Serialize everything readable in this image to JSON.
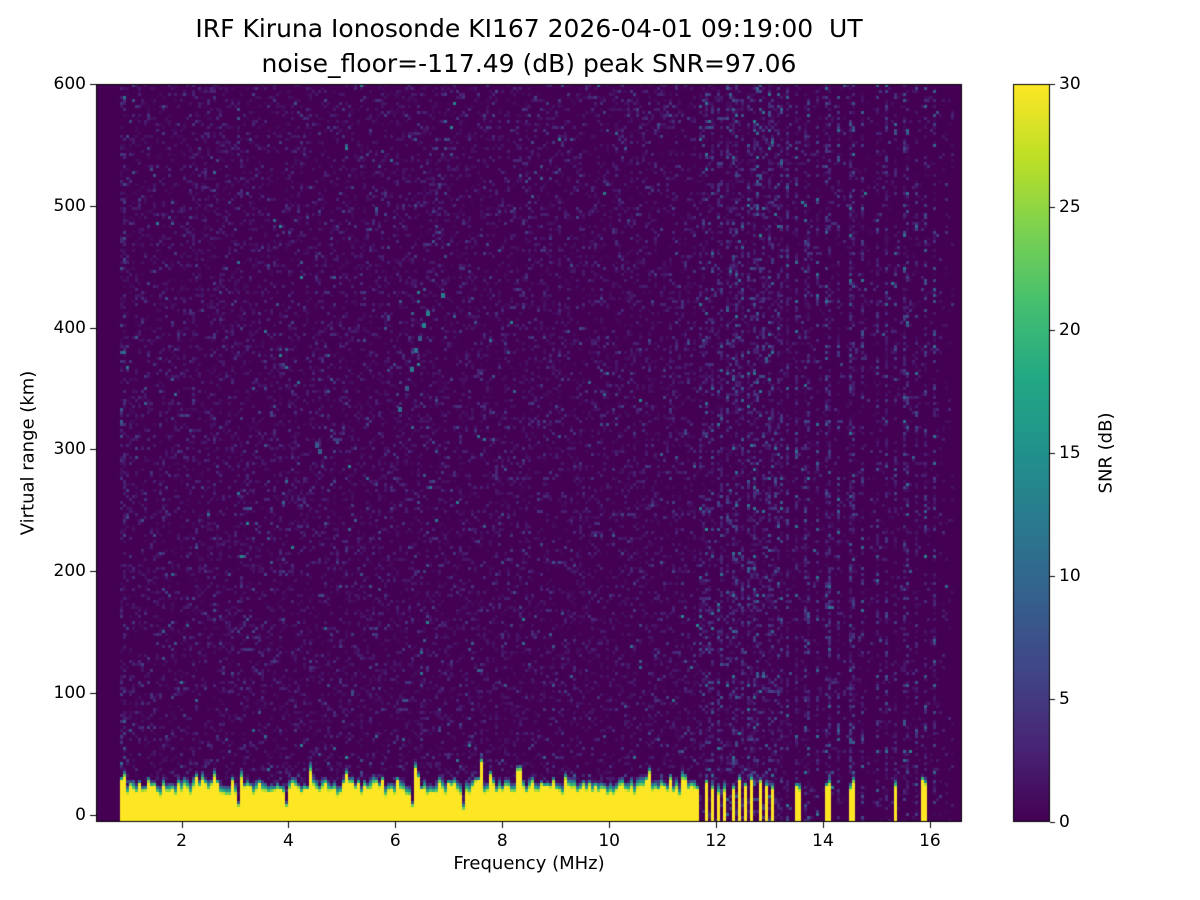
{
  "chart_data": {
    "type": "heatmap",
    "title": "IRF Kiruna Ionosonde KI167 2026-04-01 09:19:00  UT",
    "subtitle": "noise_floor=-117.49 (dB) peak SNR=97.06",
    "station": "IRF Kiruna Ionosonde KI167",
    "timestamp_ut": "2026-04-01 09:19:00 UT",
    "noise_floor_db": -117.49,
    "peak_snr_db": 97.06,
    "xlabel": "Frequency (MHz)",
    "ylabel": "Virtual range (km)",
    "xlim": [
      0.4,
      16.6
    ],
    "ylim": [
      -6,
      600
    ],
    "xticks": [
      2,
      4,
      6,
      8,
      10,
      12,
      14,
      16
    ],
    "yticks": [
      0,
      100,
      200,
      300,
      400,
      500,
      600
    ],
    "colorbar": {
      "label": "SNR (dB)",
      "min": 0,
      "max": 30,
      "ticks": [
        0,
        5,
        10,
        15,
        20,
        25,
        30
      ],
      "colormap": "viridis"
    },
    "heatmap": {
      "background_snr_db": 0,
      "data_freq_range_mhz": [
        0.85,
        16.45
      ],
      "ground_echo_band": {
        "snr_db": 30,
        "top_km_mean": 30,
        "top_km_jitter_range": [
          22,
          45
        ],
        "freq_start_mhz": 0.85,
        "continuous_until_mhz": 11.65
      },
      "intermittent_band_mhz": [
        11.65,
        13.12
      ],
      "bar_period_mhz": 0.125,
      "isolated_bars_mhz": [
        13.52,
        14.1,
        14.55,
        15.35,
        15.9
      ],
      "band_notches_mhz": [
        3.05,
        3.95,
        6.33,
        7.3
      ],
      "rfi_columns_mhz": [
        11.7,
        11.82,
        11.95,
        12.08,
        12.22,
        12.35,
        12.5,
        12.62,
        12.75,
        12.9,
        13.02,
        13.2,
        13.35,
        13.52,
        13.7,
        13.9,
        14.1,
        14.3,
        14.55,
        14.75,
        15.0,
        15.2,
        15.35,
        15.55,
        15.75,
        15.9,
        16.1
      ],
      "echo_trace_points": [
        [
          6.05,
          335
        ],
        [
          6.18,
          352
        ],
        [
          6.28,
          368
        ],
        [
          6.35,
          383
        ],
        [
          6.42,
          393
        ],
        [
          6.5,
          404
        ],
        [
          6.57,
          414
        ],
        [
          6.85,
          428
        ],
        [
          4.5,
          305
        ],
        [
          4.56,
          300
        ]
      ]
    }
  }
}
